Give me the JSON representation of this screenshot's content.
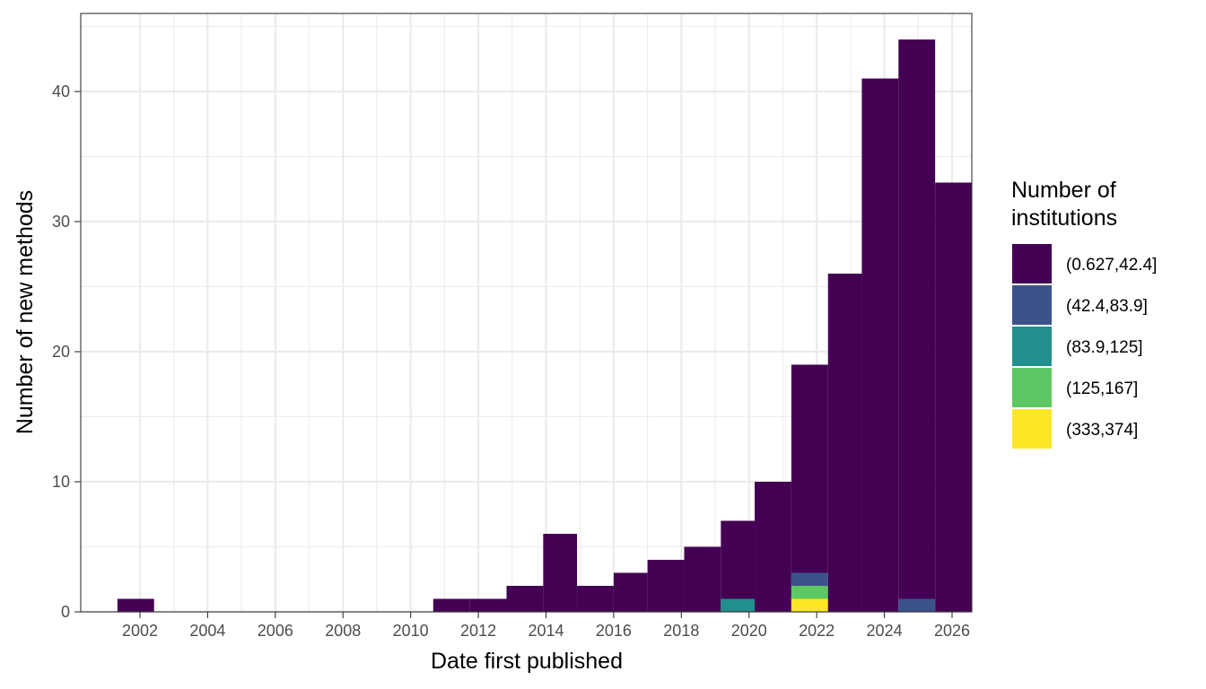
{
  "chart_data": {
    "type": "bar",
    "stacked": true,
    "title": "",
    "xlabel": "Date first published",
    "ylabel": "Number of new methods",
    "x_axis_type": "date",
    "xlim": [
      "2000-04-01",
      "2026-08-01"
    ],
    "ylim": [
      0,
      46
    ],
    "grid": true,
    "x_ticks": [
      "2002",
      "2004",
      "2006",
      "2008",
      "2010",
      "2012",
      "2014",
      "2016",
      "2018",
      "2020",
      "2022",
      "2024",
      "2026"
    ],
    "y_ticks": [
      "0",
      "10",
      "20",
      "30",
      "40"
    ],
    "bins": [
      {
        "start": "2001-05-01",
        "end": "2002-06-01",
        "counts": [
          1,
          0,
          0,
          0,
          0
        ]
      },
      {
        "start": "2010-09-01",
        "end": "2011-10-01",
        "counts": [
          1,
          0,
          0,
          0,
          0
        ]
      },
      {
        "start": "2011-10-01",
        "end": "2012-11-01",
        "counts": [
          1,
          0,
          0,
          0,
          0
        ]
      },
      {
        "start": "2012-11-01",
        "end": "2013-12-01",
        "counts": [
          2,
          0,
          0,
          0,
          0
        ]
      },
      {
        "start": "2013-12-01",
        "end": "2014-12-01",
        "counts": [
          6,
          0,
          0,
          0,
          0
        ]
      },
      {
        "start": "2014-12-01",
        "end": "2016-01-01",
        "counts": [
          2,
          0,
          0,
          0,
          0
        ]
      },
      {
        "start": "2016-01-01",
        "end": "2017-01-01",
        "counts": [
          3,
          0,
          0,
          0,
          0
        ]
      },
      {
        "start": "2017-01-01",
        "end": "2018-02-01",
        "counts": [
          4,
          0,
          0,
          0,
          0
        ]
      },
      {
        "start": "2018-02-01",
        "end": "2019-03-01",
        "counts": [
          5,
          0,
          0,
          0,
          0
        ]
      },
      {
        "start": "2019-03-01",
        "end": "2020-03-01",
        "counts": [
          6,
          0,
          1,
          0,
          0
        ]
      },
      {
        "start": "2020-03-01",
        "end": "2021-04-01",
        "counts": [
          10,
          0,
          0,
          0,
          0
        ]
      },
      {
        "start": "2021-04-01",
        "end": "2022-05-01",
        "counts": [
          16,
          1,
          0,
          1,
          1
        ]
      },
      {
        "start": "2022-05-01",
        "end": "2023-05-01",
        "counts": [
          26,
          0,
          0,
          0,
          0
        ]
      },
      {
        "start": "2023-05-01",
        "end": "2024-06-01",
        "counts": [
          41,
          0,
          0,
          0,
          0
        ]
      },
      {
        "start": "2024-06-01",
        "end": "2025-07-01",
        "counts": [
          43,
          1,
          0,
          0,
          0
        ]
      },
      {
        "start": "2025-07-01",
        "end": "2026-08-01",
        "counts": [
          33,
          0,
          0,
          0,
          0
        ]
      }
    ],
    "legend": {
      "title_lines": [
        "Number of",
        "institutions"
      ],
      "position": "right",
      "entries": [
        {
          "label": "(0.627,42.4]",
          "color": "#440154"
        },
        {
          "label": "(42.4,83.9]",
          "color": "#3B528B"
        },
        {
          "label": "(83.9,125]",
          "color": "#21908C"
        },
        {
          "label": "(125,167]",
          "color": "#5DC863"
        },
        {
          "label": "(333,374]",
          "color": "#FDE725"
        }
      ]
    }
  }
}
